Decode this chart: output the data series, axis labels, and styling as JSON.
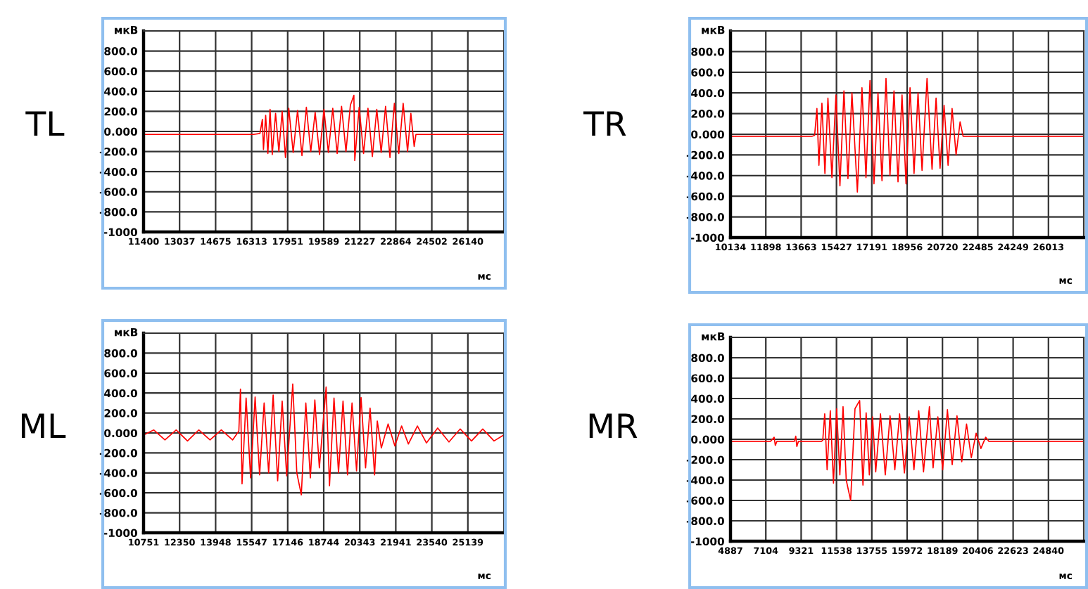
{
  "chart_data": [
    {
      "type": "line",
      "annotations": [
        "TL"
      ],
      "xlabel": "мс",
      "ylabel": "мкВ",
      "xlim": [
        11400,
        27778
      ],
      "ylim": [
        -1000,
        1000
      ],
      "grid": true,
      "xticks": [
        11400,
        13037,
        14675,
        16313,
        17951,
        19589,
        21227,
        22864,
        24502,
        26140
      ],
      "yticks": [
        {
          "value": 1000,
          "label": null
        },
        {
          "value": 800,
          "label": "800.0"
        },
        {
          "value": 600,
          "label": "600.0"
        },
        {
          "value": 400,
          "label": "400.0"
        },
        {
          "value": 200,
          "label": "200.0"
        },
        {
          "value": 0,
          "label": "0.000"
        },
        {
          "value": -200,
          "label": "-200.0"
        },
        {
          "value": -400,
          "label": "-400.0"
        },
        {
          "value": -600,
          "label": "-600.0"
        },
        {
          "value": -800,
          "label": "-800.0"
        },
        -1000
      ],
      "series": [
        {
          "color": "#ff0000",
          "x": [
            11400,
            16400,
            16690,
            16800,
            16850,
            16950,
            17050,
            17150,
            17250,
            17400,
            17550,
            17700,
            17850,
            18000,
            18200,
            18400,
            18600,
            18800,
            19000,
            19200,
            19400,
            19600,
            19800,
            20000,
            20200,
            20400,
            20600,
            20800,
            20960,
            21000,
            21200,
            21400,
            21600,
            21800,
            22000,
            22200,
            22400,
            22600,
            22800,
            23000,
            23200,
            23400,
            23550,
            23700,
            23780,
            27778
          ],
          "values": [
            -30,
            -30,
            -20,
            120,
            -180,
            160,
            -220,
            220,
            -230,
            180,
            -200,
            200,
            -260,
            230,
            -210,
            210,
            -240,
            240,
            -200,
            190,
            -230,
            220,
            -210,
            230,
            -220,
            250,
            -200,
            260,
            360,
            -290,
            240,
            -220,
            230,
            -250,
            220,
            -210,
            250,
            -260,
            280,
            -220,
            280,
            -200,
            180,
            -150,
            -30,
            -30
          ]
        }
      ]
    },
    {
      "type": "line",
      "annotations": [
        "TR"
      ],
      "xlabel": "мс",
      "ylabel": "мкВ",
      "xlim": [
        10134,
        27777
      ],
      "ylim": [
        -1000,
        1000
      ],
      "grid": true,
      "xticks": [
        10134,
        11898,
        13663,
        15427,
        17191,
        18956,
        20720,
        22485,
        24249,
        26013
      ],
      "yticks": [
        {
          "value": 1000,
          "label": null
        },
        {
          "value": 800,
          "label": "800.0"
        },
        {
          "value": 600,
          "label": "600.0"
        },
        {
          "value": 400,
          "label": "400.0"
        },
        {
          "value": 200,
          "label": "200.0"
        },
        {
          "value": 0,
          "label": "0.000"
        },
        {
          "value": -200,
          "label": "-200.0"
        },
        {
          "value": -400,
          "label": "-400.0"
        },
        {
          "value": -600,
          "label": "-600.0"
        },
        {
          "value": -800,
          "label": "-800.0"
        },
        -1000
      ],
      "series": [
        {
          "color": "#ff0000",
          "x": [
            10134,
            14200,
            14336,
            14450,
            14550,
            14700,
            14850,
            15000,
            15200,
            15400,
            15600,
            15800,
            16000,
            16200,
            16470,
            16700,
            16900,
            17100,
            17300,
            17500,
            17700,
            17900,
            18100,
            18300,
            18500,
            18700,
            18900,
            19100,
            19300,
            19500,
            19700,
            19950,
            20200,
            20400,
            20600,
            20800,
            21000,
            21200,
            21400,
            21600,
            21750,
            27777
          ],
          "values": [
            -20,
            -20,
            -10,
            250,
            -300,
            300,
            -380,
            350,
            -420,
            380,
            -500,
            420,
            -430,
            400,
            -560,
            450,
            -420,
            520,
            -480,
            400,
            -450,
            540,
            -400,
            420,
            -460,
            380,
            -480,
            450,
            -380,
            400,
            -350,
            540,
            -340,
            350,
            -330,
            280,
            -300,
            250,
            -200,
            120,
            -20,
            -20
          ]
        }
      ]
    },
    {
      "type": "line",
      "annotations": [
        "ML"
      ],
      "xlabel": "мс",
      "ylabel": "мкВ",
      "xlim": [
        10751,
        26737
      ],
      "ylim": [
        -1000,
        1000
      ],
      "grid": true,
      "xticks": [
        10751,
        12350,
        13948,
        15547,
        17146,
        18744,
        20343,
        21941,
        23540,
        25139
      ],
      "yticks": [
        {
          "value": 1000,
          "label": null
        },
        {
          "value": 800,
          "label": "800.0"
        },
        {
          "value": 600,
          "label": "600.0"
        },
        {
          "value": 400,
          "label": "400.0"
        },
        {
          "value": 200,
          "label": "200.0"
        },
        {
          "value": 0,
          "label": "0.000"
        },
        {
          "value": -200,
          "label": "-200.0"
        },
        {
          "value": -400,
          "label": "-400.0"
        },
        {
          "value": -600,
          "label": "-600.0"
        },
        {
          "value": -800,
          "label": "-800.0"
        },
        -1000
      ],
      "series": [
        {
          "color": "#ff0000",
          "x": [
            10751,
            11200,
            11700,
            12200,
            12700,
            13200,
            13700,
            14200,
            14700,
            14978,
            15050,
            15120,
            15300,
            15500,
            15700,
            15900,
            16100,
            16300,
            16500,
            16700,
            16900,
            17100,
            17370,
            17550,
            17750,
            17950,
            18150,
            18350,
            18550,
            18850,
            19000,
            19200,
            19400,
            19600,
            19800,
            20000,
            20200,
            20400,
            20600,
            20800,
            21000,
            21120,
            21300,
            21600,
            21900,
            22200,
            22500,
            22900,
            23300,
            23800,
            24300,
            24800,
            25300,
            25800,
            26300,
            26737
          ],
          "values": [
            -20,
            30,
            -70,
            30,
            -80,
            30,
            -70,
            30,
            -70,
            20,
            440,
            -510,
            350,
            -450,
            360,
            -420,
            300,
            -400,
            380,
            -480,
            320,
            -430,
            490,
            -400,
            -620,
            300,
            -450,
            330,
            -350,
            460,
            -530,
            350,
            -400,
            320,
            -420,
            300,
            -380,
            355,
            -350,
            250,
            -420,
            120,
            -150,
            90,
            -130,
            70,
            -110,
            70,
            -100,
            50,
            -90,
            40,
            -80,
            40,
            -80,
            -20
          ]
        }
      ]
    },
    {
      "type": "line",
      "annotations": [
        "MR"
      ],
      "xlabel": "мс",
      "ylabel": "мкВ",
      "xlim": [
        4887,
        27057
      ],
      "ylim": [
        -1000,
        1000
      ],
      "grid": true,
      "xticks": [
        4887,
        7104,
        9321,
        11538,
        13755,
        15972,
        18189,
        20406,
        22623,
        24840
      ],
      "yticks": [
        {
          "value": 1000,
          "label": null
        },
        {
          "value": 800,
          "label": "800.0"
        },
        {
          "value": 600,
          "label": "600.0"
        },
        {
          "value": 400,
          "label": "400.0"
        },
        {
          "value": 200,
          "label": "200.0"
        },
        {
          "value": 0,
          "label": "0.000"
        },
        {
          "value": -200,
          "label": "-200.0"
        },
        {
          "value": -400,
          "label": "-400.0"
        },
        {
          "value": -600,
          "label": "-600.0"
        },
        {
          "value": -800,
          "label": "-800.0"
        },
        -1000
      ],
      "series": [
        {
          "color": "#ff0000",
          "x": [
            4887,
            7400,
            7626,
            7700,
            7800,
            8900,
            8982,
            9050,
            9150,
            10600,
            10676,
            10800,
            10950,
            11150,
            11350,
            11550,
            11750,
            11950,
            12150,
            12427,
            12700,
            12992,
            13200,
            13400,
            13600,
            13800,
            14000,
            14300,
            14600,
            14900,
            15200,
            15500,
            15800,
            16100,
            16400,
            16700,
            17000,
            17370,
            17600,
            17900,
            18200,
            18500,
            18800,
            19100,
            19400,
            19700,
            20000,
            20300,
            20600,
            20900,
            21100,
            27057
          ],
          "values": [
            -20,
            -20,
            20,
            -60,
            -20,
            -20,
            30,
            -70,
            -20,
            -20,
            -10,
            250,
            -300,
            280,
            -430,
            300,
            -350,
            320,
            -400,
            -600,
            300,
            380,
            -450,
            260,
            -350,
            220,
            -320,
            250,
            -350,
            230,
            -300,
            250,
            -330,
            220,
            -300,
            280,
            -320,
            320,
            -280,
            220,
            -300,
            290,
            -250,
            230,
            -220,
            150,
            -180,
            60,
            -90,
            20,
            -20,
            -20
          ]
        }
      ]
    }
  ]
}
